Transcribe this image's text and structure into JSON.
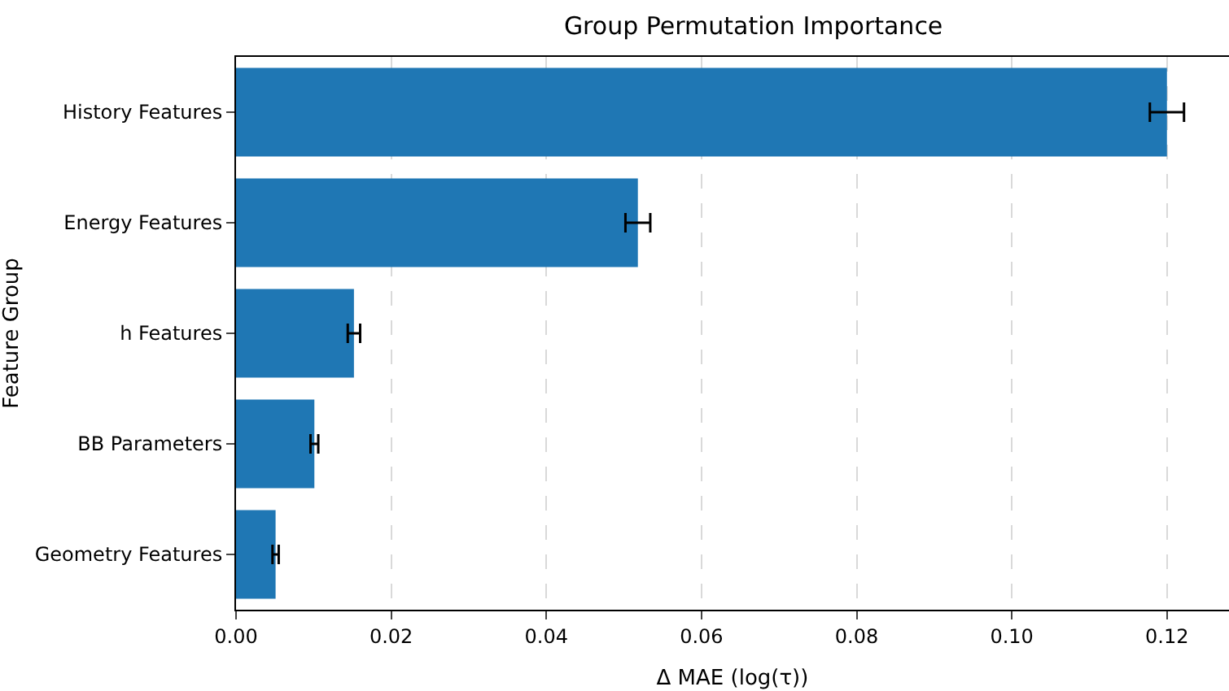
{
  "chart_data": {
    "type": "bar",
    "orientation": "horizontal",
    "title": "Group Permutation Importance",
    "xlabel": "Δ MAE (log(τ))",
    "ylabel": "Feature Group",
    "categories": [
      "History Features",
      "Energy Features",
      "h Features",
      "BB Parameters",
      "Geometry Features"
    ],
    "values": [
      0.12,
      0.0518,
      0.0152,
      0.0101,
      0.0051
    ],
    "errors": [
      0.0022,
      0.0016,
      0.0008,
      0.0005,
      0.0004
    ],
    "color": "#1f77b4",
    "xlim": [
      0,
      0.128
    ],
    "xticks": [
      {
        "value": 0,
        "label": "0.00"
      },
      {
        "value": 0.02,
        "label": "0.02"
      },
      {
        "value": 0.04,
        "label": "0.04"
      },
      {
        "value": 0.06,
        "label": "0.06"
      },
      {
        "value": 0.08,
        "label": "0.08"
      },
      {
        "value": 0.1,
        "label": "0.10"
      },
      {
        "value": 0.12,
        "label": "0.12"
      }
    ],
    "grid": "x"
  }
}
